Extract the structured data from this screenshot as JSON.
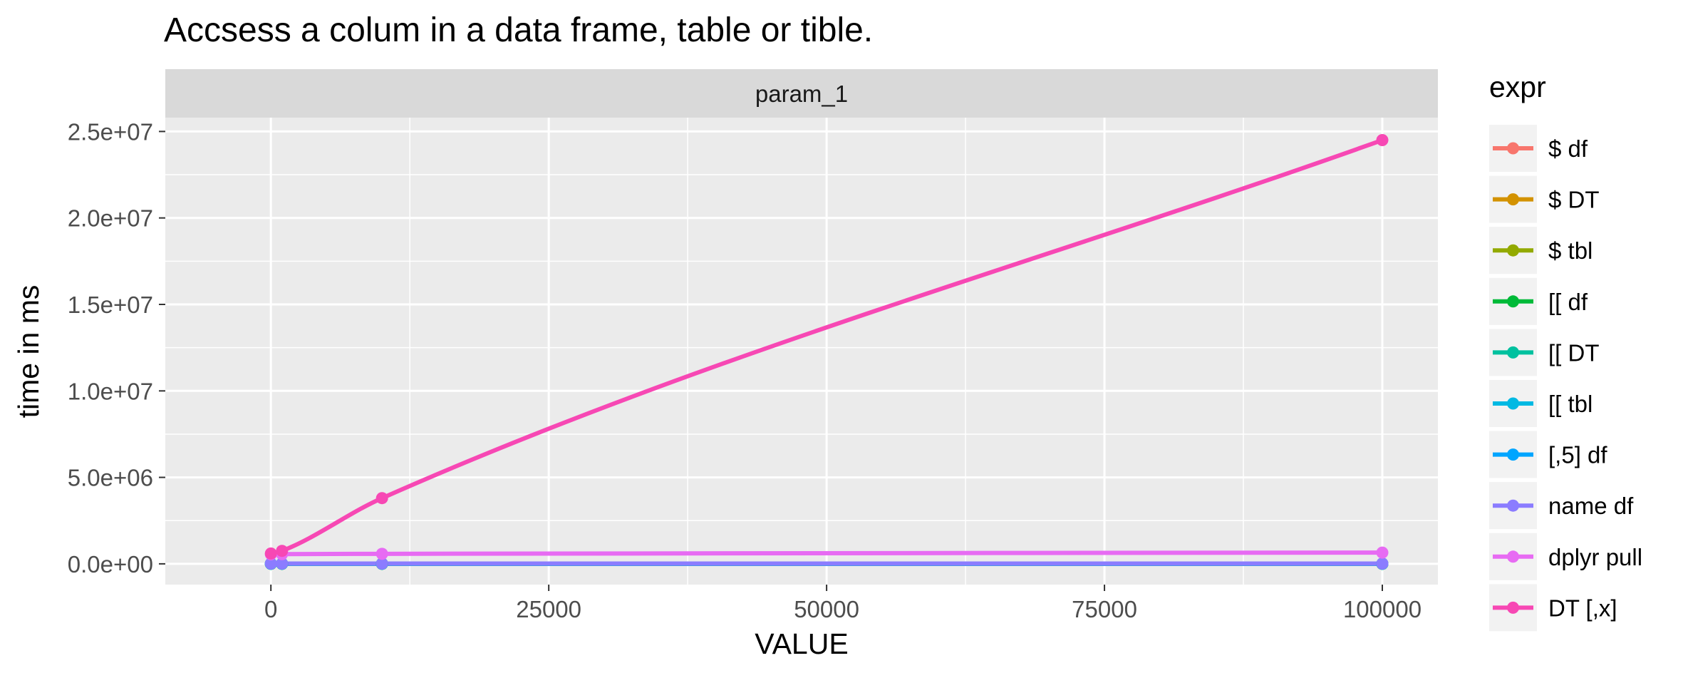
{
  "chart_data": {
    "type": "line",
    "title": "Accsess a colum in a data frame, table or tible.",
    "facet_label": "param_1",
    "xlabel": "VALUE",
    "ylabel": "time in ms",
    "xlim": [
      -9500,
      105000
    ],
    "ylim": [
      -1200000,
      25800000
    ],
    "x_ticks": [
      0,
      25000,
      50000,
      75000,
      100000
    ],
    "x_tick_labels": [
      "0",
      "25000",
      "50000",
      "75000",
      "100000"
    ],
    "y_ticks": [
      0,
      5000000,
      10000000,
      15000000,
      20000000,
      25000000
    ],
    "y_tick_labels": [
      "0.0e+00",
      "5.0e+06",
      "1.0e+07",
      "1.5e+07",
      "2.0e+07",
      "2.5e+07"
    ],
    "grid": true,
    "legend_title": "expr",
    "legend_position": "right",
    "x": [
      1,
      1000,
      10000,
      100000
    ],
    "series": [
      {
        "name": "$ df",
        "color": "#F8766D",
        "values": [
          3000,
          3000,
          3000,
          3000
        ]
      },
      {
        "name": "$ DT",
        "color": "#D39200",
        "values": [
          3000,
          3000,
          3000,
          3000
        ]
      },
      {
        "name": "$ tbl",
        "color": "#93AA00",
        "values": [
          3000,
          3000,
          3000,
          3000
        ]
      },
      {
        "name": "[[ df",
        "color": "#00BA38",
        "values": [
          5000,
          5000,
          5000,
          5000
        ]
      },
      {
        "name": "[[ DT",
        "color": "#00C19F",
        "values": [
          5000,
          5000,
          5000,
          5000
        ]
      },
      {
        "name": "[[ tbl",
        "color": "#00B9E3",
        "values": [
          5000,
          5000,
          5000,
          5000
        ]
      },
      {
        "name": "[,5] df",
        "color": "#00A5FF",
        "values": [
          8000,
          8000,
          8000,
          8000
        ]
      },
      {
        "name": "name df",
        "color": "#8B7CFF",
        "values": [
          15000,
          15000,
          15000,
          15000
        ]
      },
      {
        "name": "dplyr pull",
        "color": "#E76BF3",
        "values": [
          550000,
          560000,
          580000,
          650000
        ]
      },
      {
        "name": "DT [,x]",
        "color": "#F748B4",
        "values": [
          600000,
          750000,
          3800000,
          24500000
        ]
      }
    ]
  }
}
